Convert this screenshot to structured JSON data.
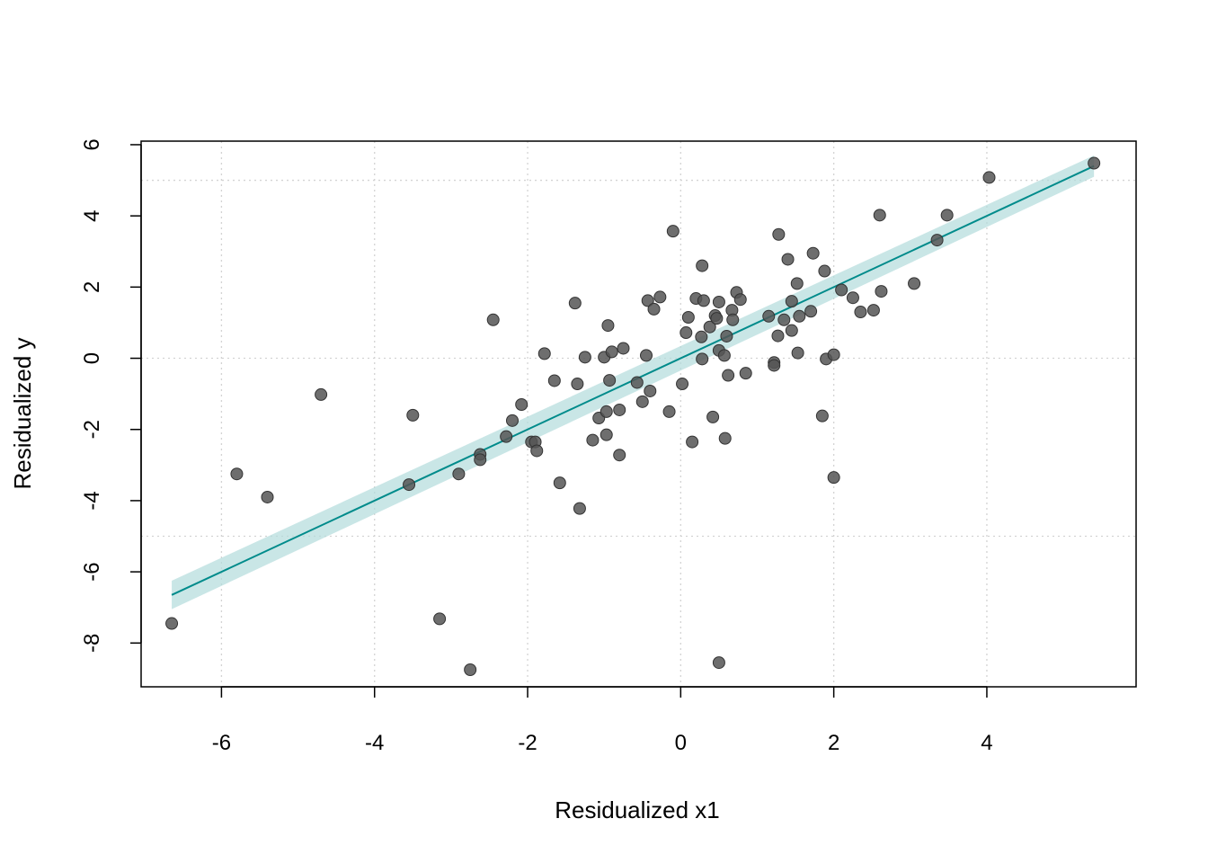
{
  "chart_data": {
    "type": "scatter",
    "title": "",
    "xlabel": "Residualized x1",
    "ylabel": "Residualized y",
    "xlim": [
      -7.05,
      5.95
    ],
    "ylim": [
      -9.23,
      6.1
    ],
    "x_ticks": [
      -6,
      -4,
      -2,
      0,
      2,
      4
    ],
    "y_ticks": [
      6,
      4,
      2,
      0,
      -2,
      -4,
      -6,
      -8
    ],
    "x_tick_labels": [
      "-6",
      "-4",
      "-2",
      "0",
      "2",
      "4"
    ],
    "y_tick_labels": [
      "6",
      "4",
      "2",
      "0",
      "-2",
      "-4",
      "-6",
      "-8"
    ],
    "grid_x": [
      -6,
      -4,
      -2,
      0,
      2,
      4
    ],
    "grid_y": [
      5,
      0,
      -5
    ],
    "point_color": "#555555",
    "fit_color": "#008b8b",
    "band_color": "#b2dcdc",
    "fit_line": {
      "x": [
        -6.65,
        5.4
      ],
      "y": [
        -6.65,
        5.4
      ],
      "ci_lower": [
        -7.05,
        5.1
      ],
      "ci_upper": [
        -6.25,
        5.7
      ]
    },
    "points": [
      {
        "x": -6.65,
        "y": -7.45
      },
      {
        "x": -5.8,
        "y": -3.25
      },
      {
        "x": -5.4,
        "y": -3.9
      },
      {
        "x": -4.7,
        "y": -1.02
      },
      {
        "x": -3.55,
        "y": -3.55
      },
      {
        "x": -3.5,
        "y": -1.6
      },
      {
        "x": -3.15,
        "y": -7.32
      },
      {
        "x": -2.9,
        "y": -3.25
      },
      {
        "x": -2.75,
        "y": -8.75
      },
      {
        "x": -2.62,
        "y": -2.7
      },
      {
        "x": -2.62,
        "y": -2.85
      },
      {
        "x": -2.45,
        "y": 1.08
      },
      {
        "x": -2.28,
        "y": -2.2
      },
      {
        "x": -2.2,
        "y": -1.75
      },
      {
        "x": -2.08,
        "y": -1.3
      },
      {
        "x": -1.95,
        "y": -2.35
      },
      {
        "x": -1.9,
        "y": -2.35
      },
      {
        "x": -1.88,
        "y": -2.6
      },
      {
        "x": -1.78,
        "y": 0.13
      },
      {
        "x": -1.65,
        "y": -0.63
      },
      {
        "x": -1.58,
        "y": -3.5
      },
      {
        "x": -1.38,
        "y": 1.55
      },
      {
        "x": -1.35,
        "y": -0.72
      },
      {
        "x": -1.32,
        "y": -4.22
      },
      {
        "x": -1.25,
        "y": 0.03
      },
      {
        "x": -1.15,
        "y": -2.3
      },
      {
        "x": -1.07,
        "y": -1.68
      },
      {
        "x": -1.0,
        "y": 0.03
      },
      {
        "x": -0.97,
        "y": -1.5
      },
      {
        "x": -0.97,
        "y": -2.15
      },
      {
        "x": -0.95,
        "y": 0.92
      },
      {
        "x": -0.93,
        "y": -0.62
      },
      {
        "x": -0.9,
        "y": 0.18
      },
      {
        "x": -0.8,
        "y": -1.45
      },
      {
        "x": -0.8,
        "y": -2.72
      },
      {
        "x": -0.75,
        "y": 0.28
      },
      {
        "x": -0.57,
        "y": -0.68
      },
      {
        "x": -0.5,
        "y": -1.22
      },
      {
        "x": -0.45,
        "y": 0.08
      },
      {
        "x": -0.43,
        "y": 1.62
      },
      {
        "x": -0.4,
        "y": -0.92
      },
      {
        "x": -0.35,
        "y": 1.38
      },
      {
        "x": -0.27,
        "y": 1.72
      },
      {
        "x": -0.15,
        "y": -1.5
      },
      {
        "x": -0.1,
        "y": 3.57
      },
      {
        "x": 0.02,
        "y": -0.72
      },
      {
        "x": 0.07,
        "y": 0.72
      },
      {
        "x": 0.1,
        "y": 1.15
      },
      {
        "x": 0.15,
        "y": -2.35
      },
      {
        "x": 0.2,
        "y": 1.68
      },
      {
        "x": 0.27,
        "y": 0.6
      },
      {
        "x": 0.28,
        "y": -0.02
      },
      {
        "x": 0.28,
        "y": 2.6
      },
      {
        "x": 0.3,
        "y": 1.62
      },
      {
        "x": 0.38,
        "y": 0.88
      },
      {
        "x": 0.42,
        "y": -1.65
      },
      {
        "x": 0.45,
        "y": 1.2
      },
      {
        "x": 0.47,
        "y": 1.12
      },
      {
        "x": 0.5,
        "y": 0.22
      },
      {
        "x": 0.5,
        "y": 1.58
      },
      {
        "x": 0.5,
        "y": -8.55
      },
      {
        "x": 0.57,
        "y": 0.08
      },
      {
        "x": 0.58,
        "y": -2.25
      },
      {
        "x": 0.6,
        "y": 0.62
      },
      {
        "x": 0.62,
        "y": -0.48
      },
      {
        "x": 0.67,
        "y": 1.35
      },
      {
        "x": 0.68,
        "y": 1.08
      },
      {
        "x": 0.73,
        "y": 1.85
      },
      {
        "x": 0.78,
        "y": 1.65
      },
      {
        "x": 0.85,
        "y": -0.42
      },
      {
        "x": 1.15,
        "y": 1.18
      },
      {
        "x": 1.22,
        "y": -0.12
      },
      {
        "x": 1.22,
        "y": -0.2
      },
      {
        "x": 1.27,
        "y": 0.63
      },
      {
        "x": 1.28,
        "y": 3.48
      },
      {
        "x": 1.35,
        "y": 1.08
      },
      {
        "x": 1.4,
        "y": 2.78
      },
      {
        "x": 1.45,
        "y": 0.78
      },
      {
        "x": 1.45,
        "y": 1.6
      },
      {
        "x": 1.52,
        "y": 2.1
      },
      {
        "x": 1.53,
        "y": 0.15
      },
      {
        "x": 1.55,
        "y": 1.18
      },
      {
        "x": 1.7,
        "y": 1.32
      },
      {
        "x": 1.73,
        "y": 2.95
      },
      {
        "x": 1.85,
        "y": -1.62
      },
      {
        "x": 1.88,
        "y": 2.45
      },
      {
        "x": 1.9,
        "y": -0.02
      },
      {
        "x": 2.0,
        "y": -3.35
      },
      {
        "x": 2.0,
        "y": 0.1
      },
      {
        "x": 2.1,
        "y": 1.92
      },
      {
        "x": 2.25,
        "y": 1.7
      },
      {
        "x": 2.35,
        "y": 1.3
      },
      {
        "x": 2.52,
        "y": 1.35
      },
      {
        "x": 2.6,
        "y": 4.02
      },
      {
        "x": 2.62,
        "y": 1.88
      },
      {
        "x": 3.05,
        "y": 2.1
      },
      {
        "x": 3.35,
        "y": 3.32
      },
      {
        "x": 3.48,
        "y": 4.02
      },
      {
        "x": 4.03,
        "y": 5.08
      },
      {
        "x": 5.4,
        "y": 5.48
      }
    ]
  }
}
